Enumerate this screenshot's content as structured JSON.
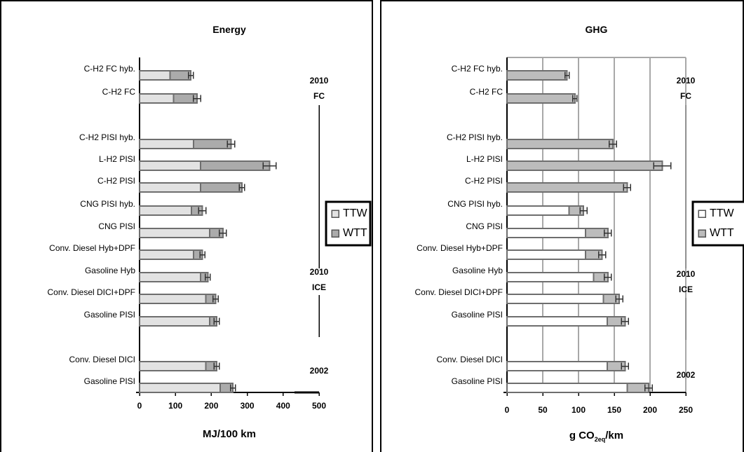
{
  "colors": {
    "ttw_energy": "#e2e2e2",
    "wtt_energy": "#ababab",
    "ttw_ghg": "#ffffff",
    "wtt_ghg": "#bcbcbc",
    "bar_border": "#6e6e6e",
    "grid": "#a8a8a8"
  },
  "legend": {
    "items": [
      "TTW",
      "WTT"
    ]
  },
  "chart_data": [
    {
      "type": "bar",
      "orientation": "horizontal",
      "stacked": true,
      "title": "Energy",
      "xlabel": "MJ/100 km",
      "xlim": [
        0,
        500
      ],
      "xticks": [
        0,
        100,
        200,
        300,
        400,
        500
      ],
      "grid": false,
      "legend_position": "right",
      "categories": [
        "C-H2 FC hyb.",
        "C-H2 FC",
        "C-H2 PISI hyb.",
        "L-H2 PISI",
        "C-H2 PISI",
        "CNG PISI hyb.",
        "CNG PISI",
        "Conv. Diesel Hyb+DPF",
        "Gasoline Hyb",
        "Conv. Diesel DICI+DPF",
        "Gasoline PISI",
        "Conv. Diesel DICI",
        "Gasoline PISI"
      ],
      "groups": [
        {
          "label_lines": [
            "2010",
            "FC"
          ],
          "start": 0,
          "end": 1
        },
        {
          "label_lines": [
            "2010",
            "ICE"
          ],
          "start": 2,
          "end": 10
        },
        {
          "label_lines": [
            "2002"
          ],
          "start": 11,
          "end": 12
        }
      ],
      "series": [
        {
          "name": "TTW",
          "values": [
            85,
            95,
            150,
            170,
            170,
            145,
            195,
            150,
            170,
            185,
            195,
            185,
            225
          ]
        },
        {
          "name": "WTT",
          "values": [
            58,
            65,
            105,
            192,
            115,
            30,
            37,
            25,
            20,
            27,
            20,
            30,
            35
          ]
        }
      ],
      "error": [
        7,
        10,
        10,
        18,
        7,
        10,
        10,
        7,
        7,
        7,
        7,
        7,
        7
      ]
    },
    {
      "type": "bar",
      "orientation": "horizontal",
      "stacked": true,
      "title": "GHG",
      "xlabel": "g CO",
      "xlabel_sub": "2eq",
      "xlabel_suffix": "/km",
      "xlim": [
        0,
        250
      ],
      "xticks": [
        0,
        50,
        100,
        150,
        200,
        250
      ],
      "grid": true,
      "legend_position": "right",
      "categories": [
        "C-H2 FC hyb.",
        "C-H2 FC",
        "C-H2 PISI hyb.",
        "L-H2 PISI",
        "C-H2 PISI",
        "CNG PISI hyb.",
        "CNG PISI",
        "Conv. Diesel Hyb+DPF",
        "Gasoline Hyb",
        "Conv. Diesel DICI+DPF",
        "Gasoline PISI",
        "Conv. Diesel DICI",
        "Gasoline PISI"
      ],
      "groups": [
        {
          "label_lines": [
            "2010",
            "FC"
          ],
          "start": 0,
          "end": 1
        },
        {
          "label_lines": [
            "2010",
            "ICE"
          ],
          "start": 2,
          "end": 10
        },
        {
          "label_lines": [
            "2002"
          ],
          "start": 11,
          "end": 12
        }
      ],
      "series": [
        {
          "name": "TTW",
          "values": [
            0,
            0,
            0,
            0,
            0,
            87,
            110,
            110,
            121,
            135,
            140,
            140,
            168
          ]
        },
        {
          "name": "WTT",
          "values": [
            84,
            95,
            148,
            217,
            168,
            20,
            31,
            23,
            20,
            22,
            25,
            25,
            30
          ]
        }
      ],
      "error": [
        3,
        3,
        5,
        12,
        5,
        5,
        5,
        5,
        5,
        5,
        5,
        5,
        5
      ]
    }
  ]
}
